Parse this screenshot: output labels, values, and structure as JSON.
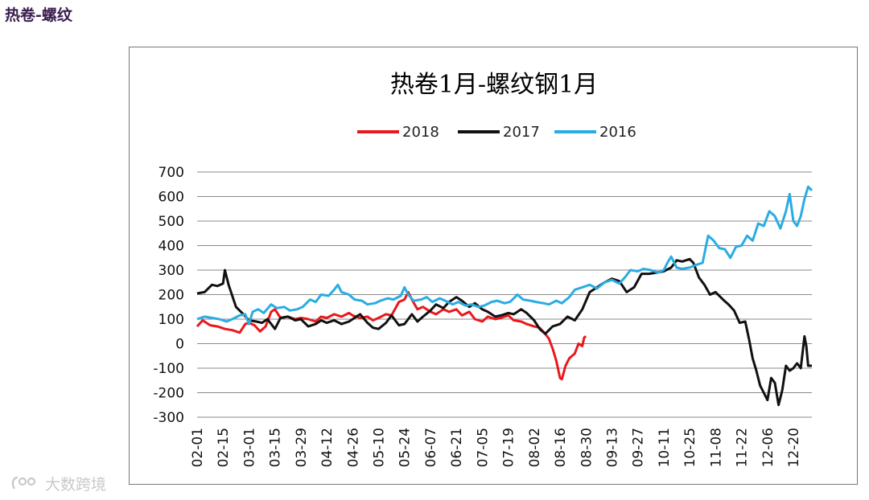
{
  "page": {
    "heading": "热卷-螺纹",
    "watermark": "大数跨境",
    "watermark_icon": "brand-logo-icon"
  },
  "chart_data": {
    "type": "line",
    "title": "热卷1月-螺纹钢1月",
    "xlabel": "",
    "ylabel": "",
    "ylim": [
      -300,
      700
    ],
    "yticks": [
      700,
      600,
      500,
      400,
      300,
      200,
      100,
      0,
      -100,
      -200,
      -300
    ],
    "grid": true,
    "legend_position": "top-center",
    "x_categories": [
      "02-01",
      "02-15",
      "03-01",
      "03-15",
      "03-29",
      "04-12",
      "04-26",
      "05-10",
      "05-24",
      "06-07",
      "06-21",
      "07-05",
      "07-19",
      "08-02",
      "08-16",
      "08-30",
      "09-13",
      "09-27",
      "10-11",
      "10-25",
      "11-08",
      "11-22",
      "12-06",
      "12-20"
    ],
    "series": [
      {
        "name": "2018",
        "color": "#e8191d",
        "points": [
          [
            "02-01",
            70
          ],
          [
            "02-04",
            95
          ],
          [
            "02-08",
            75
          ],
          [
            "02-12",
            70
          ],
          [
            "02-16",
            60
          ],
          [
            "02-20",
            55
          ],
          [
            "02-24",
            45
          ],
          [
            "02-27",
            80
          ],
          [
            "03-01",
            85
          ],
          [
            "03-04",
            75
          ],
          [
            "03-07",
            50
          ],
          [
            "03-10",
            70
          ],
          [
            "03-13",
            130
          ],
          [
            "03-15",
            140
          ],
          [
            "03-18",
            105
          ],
          [
            "03-22",
            110
          ],
          [
            "03-26",
            100
          ],
          [
            "03-29",
            105
          ],
          [
            "04-02",
            100
          ],
          [
            "04-06",
            90
          ],
          [
            "04-09",
            110
          ],
          [
            "04-12",
            105
          ],
          [
            "04-16",
            120
          ],
          [
            "04-20",
            110
          ],
          [
            "04-24",
            125
          ],
          [
            "04-26",
            115
          ],
          [
            "04-30",
            105
          ],
          [
            "05-04",
            110
          ],
          [
            "05-07",
            95
          ],
          [
            "05-10",
            105
          ],
          [
            "05-14",
            120
          ],
          [
            "05-17",
            115
          ],
          [
            "05-21",
            170
          ],
          [
            "05-24",
            180
          ],
          [
            "05-26",
            210
          ],
          [
            "05-28",
            180
          ],
          [
            "05-31",
            140
          ],
          [
            "06-03",
            150
          ],
          [
            "06-07",
            130
          ],
          [
            "06-10",
            120
          ],
          [
            "06-14",
            140
          ],
          [
            "06-17",
            130
          ],
          [
            "06-21",
            140
          ],
          [
            "06-24",
            115
          ],
          [
            "06-28",
            130
          ],
          [
            "07-01",
            100
          ],
          [
            "07-05",
            90
          ],
          [
            "07-08",
            110
          ],
          [
            "07-12",
            100
          ],
          [
            "07-15",
            105
          ],
          [
            "07-19",
            115
          ],
          [
            "07-22",
            95
          ],
          [
            "07-26",
            90
          ],
          [
            "07-29",
            80
          ],
          [
            "08-02",
            70
          ],
          [
            "08-05",
            65
          ],
          [
            "08-08",
            40
          ],
          [
            "08-10",
            20
          ],
          [
            "08-12",
            -20
          ],
          [
            "08-14",
            -70
          ],
          [
            "08-16",
            -140
          ],
          [
            "08-17",
            -145
          ],
          [
            "08-19",
            -90
          ],
          [
            "08-21",
            -60
          ],
          [
            "08-24",
            -40
          ],
          [
            "08-26",
            0
          ],
          [
            "08-28",
            -10
          ],
          [
            "08-29",
            25
          ],
          [
            "08-30",
            30
          ]
        ]
      },
      {
        "name": "2017",
        "color": "#111111",
        "points": [
          [
            "02-01",
            205
          ],
          [
            "02-05",
            210
          ],
          [
            "02-09",
            240
          ],
          [
            "02-12",
            235
          ],
          [
            "02-15",
            245
          ],
          [
            "02-16",
            300
          ],
          [
            "02-18",
            240
          ],
          [
            "02-22",
            150
          ],
          [
            "02-26",
            120
          ],
          [
            "03-01",
            95
          ],
          [
            "03-05",
            90
          ],
          [
            "03-08",
            85
          ],
          [
            "03-11",
            100
          ],
          [
            "03-15",
            60
          ],
          [
            "03-18",
            105
          ],
          [
            "03-22",
            110
          ],
          [
            "03-26",
            95
          ],
          [
            "03-29",
            100
          ],
          [
            "04-02",
            70
          ],
          [
            "04-06",
            80
          ],
          [
            "04-09",
            95
          ],
          [
            "04-12",
            85
          ],
          [
            "04-16",
            95
          ],
          [
            "04-20",
            80
          ],
          [
            "04-24",
            90
          ],
          [
            "04-26",
            100
          ],
          [
            "04-30",
            120
          ],
          [
            "05-04",
            85
          ],
          [
            "05-07",
            65
          ],
          [
            "05-10",
            60
          ],
          [
            "05-14",
            85
          ],
          [
            "05-17",
            115
          ],
          [
            "05-21",
            75
          ],
          [
            "05-24",
            80
          ],
          [
            "05-28",
            120
          ],
          [
            "05-31",
            90
          ],
          [
            "06-03",
            110
          ],
          [
            "06-07",
            135
          ],
          [
            "06-10",
            160
          ],
          [
            "06-14",
            145
          ],
          [
            "06-17",
            170
          ],
          [
            "06-21",
            190
          ],
          [
            "06-24",
            175
          ],
          [
            "06-28",
            150
          ],
          [
            "07-01",
            165
          ],
          [
            "07-05",
            140
          ],
          [
            "07-08",
            130
          ],
          [
            "07-12",
            110
          ],
          [
            "07-15",
            115
          ],
          [
            "07-19",
            125
          ],
          [
            "07-22",
            120
          ],
          [
            "07-26",
            140
          ],
          [
            "07-29",
            125
          ],
          [
            "08-02",
            95
          ],
          [
            "08-05",
            60
          ],
          [
            "08-08",
            40
          ],
          [
            "08-12",
            70
          ],
          [
            "08-16",
            80
          ],
          [
            "08-20",
            110
          ],
          [
            "08-24",
            95
          ],
          [
            "08-28",
            140
          ],
          [
            "09-01",
            210
          ],
          [
            "09-05",
            230
          ],
          [
            "09-09",
            250
          ],
          [
            "09-13",
            265
          ],
          [
            "09-17",
            255
          ],
          [
            "09-21",
            210
          ],
          [
            "09-25",
            230
          ],
          [
            "09-29",
            285
          ],
          [
            "10-03",
            285
          ],
          [
            "10-07",
            290
          ],
          [
            "10-11",
            295
          ],
          [
            "10-15",
            310
          ],
          [
            "10-18",
            340
          ],
          [
            "10-21",
            335
          ],
          [
            "10-25",
            345
          ],
          [
            "10-27",
            330
          ],
          [
            "10-30",
            270
          ],
          [
            "11-02",
            240
          ],
          [
            "11-05",
            200
          ],
          [
            "11-08",
            210
          ],
          [
            "11-12",
            180
          ],
          [
            "11-15",
            160
          ],
          [
            "11-18",
            135
          ],
          [
            "11-21",
            85
          ],
          [
            "11-24",
            90
          ],
          [
            "11-26",
            20
          ],
          [
            "11-28",
            -60
          ],
          [
            "11-30",
            -110
          ],
          [
            "12-02",
            -170
          ],
          [
            "12-04",
            -200
          ],
          [
            "12-06",
            -230
          ],
          [
            "12-08",
            -140
          ],
          [
            "12-10",
            -160
          ],
          [
            "12-12",
            -250
          ],
          [
            "12-14",
            -190
          ],
          [
            "12-16",
            -90
          ],
          [
            "12-18",
            -110
          ],
          [
            "12-20",
            -100
          ],
          [
            "12-22",
            -80
          ],
          [
            "12-24",
            -100
          ],
          [
            "12-26",
            30
          ],
          [
            "12-27",
            -10
          ],
          [
            "12-28",
            -90
          ],
          [
            "12-30",
            -90
          ]
        ]
      },
      {
        "name": "2016",
        "color": "#2aace2",
        "points": [
          [
            "02-01",
            100
          ],
          [
            "02-05",
            110
          ],
          [
            "02-09",
            105
          ],
          [
            "02-13",
            100
          ],
          [
            "02-17",
            90
          ],
          [
            "02-20",
            100
          ],
          [
            "02-24",
            115
          ],
          [
            "02-27",
            120
          ],
          [
            "03-01",
            80
          ],
          [
            "03-03",
            130
          ],
          [
            "03-06",
            140
          ],
          [
            "03-09",
            125
          ],
          [
            "03-13",
            160
          ],
          [
            "03-16",
            145
          ],
          [
            "03-20",
            150
          ],
          [
            "03-23",
            135
          ],
          [
            "03-27",
            140
          ],
          [
            "03-30",
            150
          ],
          [
            "04-03",
            180
          ],
          [
            "04-06",
            170
          ],
          [
            "04-09",
            200
          ],
          [
            "04-13",
            195
          ],
          [
            "04-16",
            220
          ],
          [
            "04-18",
            240
          ],
          [
            "04-20",
            210
          ],
          [
            "04-24",
            200
          ],
          [
            "04-27",
            180
          ],
          [
            "05-01",
            175
          ],
          [
            "05-04",
            160
          ],
          [
            "05-08",
            165
          ],
          [
            "05-11",
            175
          ],
          [
            "05-15",
            185
          ],
          [
            "05-18",
            180
          ],
          [
            "05-22",
            195
          ],
          [
            "05-24",
            230
          ],
          [
            "05-26",
            200
          ],
          [
            "05-29",
            175
          ],
          [
            "06-02",
            180
          ],
          [
            "06-05",
            190
          ],
          [
            "06-08",
            170
          ],
          [
            "06-12",
            185
          ],
          [
            "06-15",
            175
          ],
          [
            "06-19",
            160
          ],
          [
            "06-22",
            170
          ],
          [
            "06-26",
            155
          ],
          [
            "06-29",
            160
          ],
          [
            "07-03",
            150
          ],
          [
            "07-06",
            155
          ],
          [
            "07-10",
            170
          ],
          [
            "07-13",
            175
          ],
          [
            "07-17",
            165
          ],
          [
            "07-20",
            170
          ],
          [
            "07-24",
            200
          ],
          [
            "07-27",
            180
          ],
          [
            "07-31",
            175
          ],
          [
            "08-03",
            170
          ],
          [
            "08-07",
            165
          ],
          [
            "08-10",
            160
          ],
          [
            "08-14",
            175
          ],
          [
            "08-17",
            165
          ],
          [
            "08-21",
            190
          ],
          [
            "08-24",
            220
          ],
          [
            "08-28",
            230
          ],
          [
            "09-01",
            240
          ],
          [
            "09-05",
            225
          ],
          [
            "09-09",
            250
          ],
          [
            "09-13",
            260
          ],
          [
            "09-17",
            245
          ],
          [
            "09-20",
            270
          ],
          [
            "09-23",
            300
          ],
          [
            "09-27",
            295
          ],
          [
            "09-30",
            305
          ],
          [
            "10-04",
            300
          ],
          [
            "10-08",
            290
          ],
          [
            "10-11",
            300
          ],
          [
            "10-13",
            330
          ],
          [
            "10-15",
            355
          ],
          [
            "10-18",
            310
          ],
          [
            "10-21",
            305
          ],
          [
            "10-25",
            310
          ],
          [
            "10-28",
            320
          ],
          [
            "11-01",
            330
          ],
          [
            "11-04",
            440
          ],
          [
            "11-07",
            420
          ],
          [
            "11-10",
            390
          ],
          [
            "11-13",
            385
          ],
          [
            "11-16",
            350
          ],
          [
            "11-19",
            395
          ],
          [
            "11-22",
            400
          ],
          [
            "11-25",
            440
          ],
          [
            "11-28",
            420
          ],
          [
            "12-01",
            490
          ],
          [
            "12-04",
            480
          ],
          [
            "12-07",
            540
          ],
          [
            "12-10",
            520
          ],
          [
            "12-13",
            470
          ],
          [
            "12-16",
            540
          ],
          [
            "12-18",
            610
          ],
          [
            "12-20",
            500
          ],
          [
            "12-22",
            480
          ],
          [
            "12-24",
            520
          ],
          [
            "12-26",
            590
          ],
          [
            "12-28",
            640
          ],
          [
            "12-30",
            625
          ]
        ]
      }
    ]
  }
}
